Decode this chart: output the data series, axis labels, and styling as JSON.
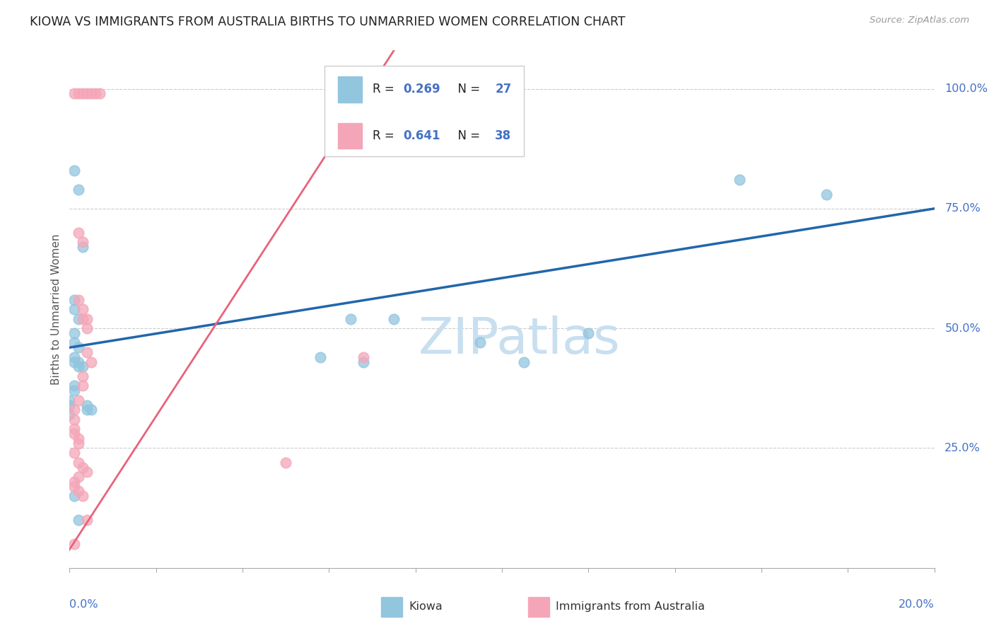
{
  "title": "KIOWA VS IMMIGRANTS FROM AUSTRALIA BIRTHS TO UNMARRIED WOMEN CORRELATION CHART",
  "source": "Source: ZipAtlas.com",
  "ylabel": "Births to Unmarried Women",
  "kiowa_color": "#92c5de",
  "aus_color": "#f4a6b8",
  "kiowa_line_color": "#2166ac",
  "aus_line_color": "#e8637a",
  "watermark_color": "#c8dff0",
  "background_color": "#ffffff",
  "kiowa_points": [
    [
      0.001,
      0.83
    ],
    [
      0.002,
      0.79
    ],
    [
      0.003,
      0.67
    ],
    [
      0.001,
      0.56
    ],
    [
      0.001,
      0.54
    ],
    [
      0.002,
      0.52
    ],
    [
      0.001,
      0.49
    ],
    [
      0.001,
      0.47
    ],
    [
      0.002,
      0.46
    ],
    [
      0.001,
      0.44
    ],
    [
      0.001,
      0.43
    ],
    [
      0.002,
      0.43
    ],
    [
      0.002,
      0.42
    ],
    [
      0.003,
      0.42
    ],
    [
      0.001,
      0.38
    ],
    [
      0.001,
      0.37
    ],
    [
      0.0,
      0.35
    ],
    [
      0.0,
      0.34
    ],
    [
      0.004,
      0.34
    ],
    [
      0.004,
      0.33
    ],
    [
      0.005,
      0.33
    ],
    [
      0.0,
      0.32
    ],
    [
      0.001,
      0.15
    ],
    [
      0.002,
      0.1
    ],
    [
      0.065,
      0.52
    ],
    [
      0.075,
      0.52
    ],
    [
      0.095,
      0.47
    ],
    [
      0.105,
      0.43
    ],
    [
      0.12,
      0.49
    ],
    [
      0.155,
      0.81
    ],
    [
      0.175,
      0.78
    ],
    [
      0.058,
      0.44
    ],
    [
      0.068,
      0.43
    ]
  ],
  "aus_points": [
    [
      0.001,
      0.99
    ],
    [
      0.002,
      0.99
    ],
    [
      0.003,
      0.99
    ],
    [
      0.004,
      0.99
    ],
    [
      0.005,
      0.99
    ],
    [
      0.006,
      0.99
    ],
    [
      0.007,
      0.99
    ],
    [
      0.002,
      0.7
    ],
    [
      0.003,
      0.68
    ],
    [
      0.002,
      0.56
    ],
    [
      0.003,
      0.54
    ],
    [
      0.003,
      0.52
    ],
    [
      0.004,
      0.52
    ],
    [
      0.004,
      0.5
    ],
    [
      0.004,
      0.45
    ],
    [
      0.005,
      0.43
    ],
    [
      0.003,
      0.4
    ],
    [
      0.003,
      0.38
    ],
    [
      0.002,
      0.35
    ],
    [
      0.001,
      0.33
    ],
    [
      0.001,
      0.31
    ],
    [
      0.001,
      0.29
    ],
    [
      0.001,
      0.28
    ],
    [
      0.002,
      0.27
    ],
    [
      0.002,
      0.26
    ],
    [
      0.001,
      0.24
    ],
    [
      0.002,
      0.22
    ],
    [
      0.003,
      0.21
    ],
    [
      0.004,
      0.2
    ],
    [
      0.002,
      0.19
    ],
    [
      0.001,
      0.18
    ],
    [
      0.001,
      0.17
    ],
    [
      0.002,
      0.16
    ],
    [
      0.001,
      0.05
    ],
    [
      0.003,
      0.15
    ],
    [
      0.004,
      0.1
    ],
    [
      0.05,
      0.22
    ],
    [
      0.068,
      0.44
    ]
  ],
  "xlim": [
    0.0,
    0.2
  ],
  "ylim": [
    0.0,
    1.08
  ],
  "kiowa_line": [
    [
      0.0,
      0.46
    ],
    [
      0.2,
      0.75
    ]
  ],
  "aus_line": [
    [
      -0.01,
      -0.1
    ],
    [
      0.075,
      1.08
    ]
  ]
}
